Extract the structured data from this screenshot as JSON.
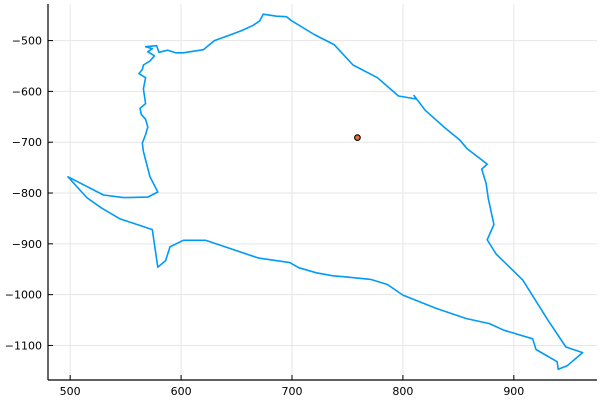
{
  "chart_data": {
    "type": "line",
    "title": "",
    "xlabel": "",
    "ylabel": "",
    "xlim": [
      480,
      975
    ],
    "ylim": [
      -1168,
      -428
    ],
    "grid": true,
    "legend": "none",
    "x_ticks": [
      500,
      600,
      700,
      800,
      900
    ],
    "y_ticks": [
      -500,
      -600,
      -700,
      -800,
      -900,
      -1000,
      -1100
    ],
    "x_tick_labels": [
      "500",
      "600",
      "700",
      "800",
      "900"
    ],
    "y_tick_labels": [
      "−500",
      "−600",
      "−700",
      "−800",
      "−900",
      "−1000",
      "−1100"
    ],
    "colors": {
      "series": "#009af9",
      "marker_fill": "#e26f46",
      "marker_stroke": "#000000",
      "grid": "#e6e6e6",
      "axis": "#000000"
    },
    "series": [
      {
        "x": [
          498,
          530,
          548,
          570,
          579,
          572,
          568,
          566,
          565,
          568,
          570,
          568,
          564,
          563,
          568,
          566,
          568,
          562,
          565,
          566,
          572,
          576,
          570,
          574,
          568,
          578,
          580,
          588,
          595,
          602,
          620,
          630,
          644,
          654,
          665,
          671,
          674,
          686,
          695,
          699,
          720,
          738,
          755,
          777,
          796,
          812,
          810,
          820,
          838,
          851,
          858,
          876,
          871,
          875,
          877,
          882,
          876,
          884,
          908,
          931,
          947,
          962,
          948,
          940,
          939,
          920,
          917,
          891,
          878,
          857,
          830,
          800,
          786,
          771,
          749,
          737,
          722,
          706,
          698,
          670,
          622,
          602,
          590,
          586,
          579,
          574,
          563,
          545,
          528,
          515,
          498
        ],
        "y": [
          -768,
          -804,
          -809,
          -808,
          -798,
          -768,
          -735,
          -718,
          -702,
          -685,
          -670,
          -655,
          -645,
          -633,
          -624,
          -595,
          -573,
          -565,
          -557,
          -548,
          -540,
          -530,
          -522,
          -516,
          -512,
          -510,
          -523,
          -519,
          -524,
          -524,
          -518,
          -500,
          -489,
          -481,
          -470,
          -461,
          -448,
          -452,
          -453,
          -460,
          -488,
          -508,
          -548,
          -573,
          -609,
          -615,
          -608,
          -637,
          -672,
          -695,
          -713,
          -743,
          -753,
          -781,
          -811,
          -862,
          -892,
          -920,
          -971,
          -1051,
          -1103,
          -1114,
          -1140,
          -1147,
          -1132,
          -1108,
          -1087,
          -1070,
          -1057,
          -1047,
          -1027,
          -1001,
          -980,
          -970,
          -965,
          -963,
          -957,
          -947,
          -937,
          -928,
          -893,
          -893,
          -906,
          -933,
          -946,
          -872,
          -864,
          -851,
          -829,
          -809,
          -768
        ]
      }
    ],
    "points": [
      {
        "x": 759,
        "y": -691
      }
    ]
  }
}
